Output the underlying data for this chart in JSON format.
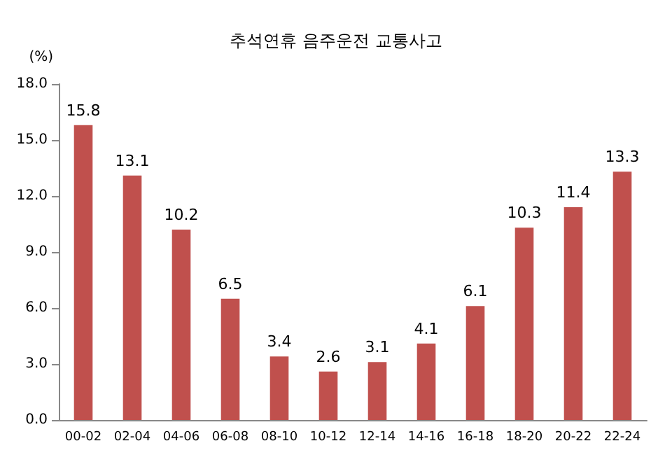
{
  "chart_data": {
    "type": "bar",
    "title": "추석연휴 음주운전 교통사고",
    "ylabel": "(%)",
    "categories": [
      "00-02",
      "02-04",
      "04-06",
      "06-08",
      "08-10",
      "10-12",
      "12-14",
      "14-16",
      "16-18",
      "18-20",
      "20-22",
      "22-24"
    ],
    "values": [
      15.8,
      13.1,
      10.2,
      6.5,
      3.4,
      2.6,
      3.1,
      4.1,
      6.1,
      10.3,
      11.4,
      13.3
    ],
    "color": "#c0504d",
    "ylim": [
      0,
      18
    ],
    "yticks": [
      {
        "value": 0,
        "label": "0.0"
      },
      {
        "value": 3,
        "label": "3.0"
      },
      {
        "value": 6,
        "label": "6.0"
      },
      {
        "value": 9,
        "label": "9.0"
      },
      {
        "value": 12,
        "label": "12.0"
      },
      {
        "value": 15,
        "label": "15.0"
      },
      {
        "value": 18,
        "label": "18.0"
      }
    ],
    "data_labels": true
  }
}
